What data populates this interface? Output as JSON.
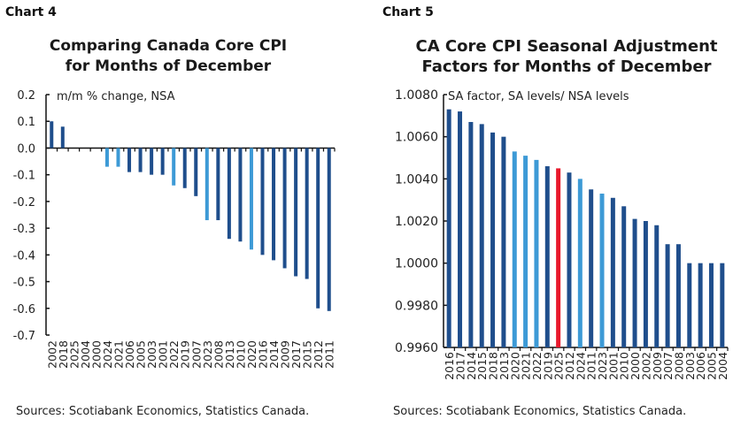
{
  "chart_data": [
    {
      "type": "bar",
      "label": "Chart 4",
      "title_lines": [
        "Comparing Canada Core CPI",
        "for Months of December"
      ],
      "ylabel": "m/m % change, NSA",
      "ylim": [
        -0.7,
        0.2
      ],
      "yticks": [
        "0.2",
        "0.1",
        "0.0",
        "-0.1",
        "-0.2",
        "-0.3",
        "-0.4",
        "-0.5",
        "-0.6",
        "-0.7"
      ],
      "categories": [
        "2002",
        "2018",
        "2025",
        "2004",
        "2000",
        "2024",
        "2021",
        "2006",
        "2005",
        "2003",
        "2001",
        "2022",
        "2019",
        "2007",
        "2023",
        "2008",
        "2013",
        "2010",
        "2020",
        "2016",
        "2014",
        "2009",
        "2017",
        "2015",
        "2012",
        "2011"
      ],
      "values": [
        0.1,
        0.08,
        0,
        0,
        0,
        -0.07,
        -0.07,
        -0.09,
        -0.09,
        -0.1,
        -0.1,
        -0.14,
        -0.15,
        -0.18,
        -0.27,
        -0.27,
        -0.34,
        -0.35,
        -0.38,
        -0.4,
        -0.42,
        -0.45,
        -0.48,
        -0.49,
        -0.6,
        -0.61
      ],
      "highlight_light": [
        "2024",
        "2021",
        "2022",
        "2023",
        "2020"
      ],
      "colors": {
        "default": "#1f4e8c",
        "light": "#3d9ad6"
      },
      "source": "Sources: Scotiabank Economics, Statistics Canada."
    },
    {
      "type": "bar",
      "label": "Chart 5",
      "title_lines": [
        "CA Core CPI Seasonal Adjustment",
        "Factors for Months of December"
      ],
      "ylabel": "SA factor, SA levels/ NSA levels",
      "ylim": [
        0.996,
        1.008
      ],
      "yticks": [
        "1.0080",
        "1.0060",
        "1.0040",
        "1.0020",
        "1.0000",
        "0.9980",
        "0.9960"
      ],
      "categories": [
        "2016",
        "2017",
        "2014",
        "2015",
        "2018",
        "2013",
        "2020",
        "2021",
        "2022",
        "2019",
        "2025",
        "2012",
        "2024",
        "2011",
        "2023",
        "2001",
        "2010",
        "2000",
        "2002",
        "2009",
        "2007",
        "2008",
        "2003",
        "2006",
        "2005",
        "2004"
      ],
      "values": [
        1.0073,
        1.0072,
        1.0067,
        1.0066,
        1.0062,
        1.006,
        1.0053,
        1.0051,
        1.0049,
        1.0046,
        1.0045,
        1.0043,
        1.004,
        1.0035,
        1.0033,
        1.0031,
        1.0027,
        1.0021,
        1.002,
        1.0018,
        1.0009,
        1.0009,
        1.0,
        1.0,
        1.0,
        1.0
      ],
      "highlight_light": [
        "2020",
        "2021",
        "2022",
        "2024",
        "2023"
      ],
      "highlight_red": [
        "2025"
      ],
      "colors": {
        "default": "#1f4e8c",
        "light": "#3d9ad6",
        "red": "#e8192c"
      },
      "source": "Sources: Scotiabank Economics, Statistics Canada."
    }
  ]
}
